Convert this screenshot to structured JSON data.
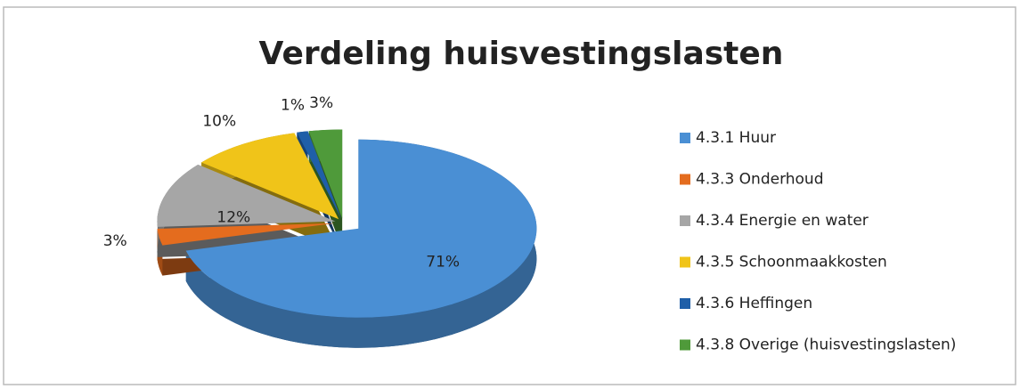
{
  "chart_data": {
    "type": "pie",
    "title": "Verdeling huisvestingslasten",
    "categories": [
      "4.3.1 Huur",
      "4.3.3 Onderhoud",
      "4.3.4 Energie en water",
      "4.3.5 Schoonmaakkosten",
      "4.3.6 Heffingen",
      "4.3.8 Overige (huisvestingslasten)"
    ],
    "values": [
      71,
      3,
      12,
      10,
      1,
      3
    ],
    "value_labels": [
      "71%",
      "3%",
      "12%",
      "10%",
      "1%",
      "3%"
    ],
    "colors": [
      "#4a8fd4",
      "#e46c1e",
      "#a6a6a6",
      "#f0c419",
      "#1f5fa8",
      "#4f9a3a"
    ],
    "legend": "right"
  }
}
